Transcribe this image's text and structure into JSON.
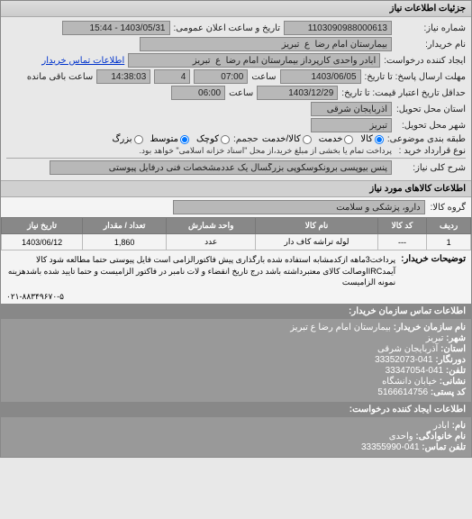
{
  "panel": {
    "title": "جزئیات اطلاعات نیاز"
  },
  "form": {
    "req_no_lbl": "شماره نیاز:",
    "req_no": "1103090988000613",
    "pub_date_lbl": "تاریخ و ساعت اعلان عمومی:",
    "pub_date": "1403/05/31 - 15:44",
    "buyer_lbl": "نام خریدار:",
    "buyer": "بیمارستان امام رضا  ع  تبریز",
    "creator_lbl": "ایجاد کننده درخواست:",
    "creator": "ابادر واحدی کارپرداز بیمارستان امام رضا  ع  تبریز",
    "contact_link": "اطلاعات تماس خریدار",
    "deadline_lbl": "مهلت ارسال پاسخ: تا تاریخ:",
    "deadline_date": "1403/06/05",
    "deadline_time_lbl": "ساعت",
    "deadline_time": "07:00",
    "remain_lbl": "ساعت باقی مانده",
    "remain_cnt": "4",
    "remain_time": "14:38:03",
    "valid_lbl": "حداقل تاریخ اعتبار قیمت: تا تاریخ:",
    "valid_date": "1403/12/29",
    "valid_time_lbl": "ساعت",
    "valid_time": "06:00",
    "prov_exec_lbl": "استان محل تحویل:",
    "prov_exec": "آذربایجان شرقی",
    "city_exec_lbl": "شهر محل تحویل:",
    "city_exec": "تبریز",
    "group_lbl": "طبقه بندی موضوعی:",
    "group_opts": {
      "goods": "کالا",
      "service": "خدمت",
      "both": "کالا/خدمت"
    },
    "size_lbl": "حجمم:",
    "size_opts": {
      "small": "کوچک",
      "med": "متوسط",
      "large": "بزرگ"
    },
    "contract_lbl": "نوع قرارداد خرید :",
    "contract_note": "پرداخت تمام یا بخشی از مبلغ خرید،از محل \"اسناد خزانه اسلامی\" خواهد بود.",
    "title_lbl": "شرح کلی نیاز:",
    "title": "پنس بیوپسی برونکوسکوپی بزرگسال یک عددمشخصات فنی درفایل پیوستی"
  },
  "goods": {
    "header": "اطلاعات کالاهای مورد نیاز",
    "group_lbl": "گروه کالا:",
    "group": "دارو، پزشکی و سلامت",
    "table": {
      "cols": [
        "ردیف",
        "کد کالا",
        "نام کالا",
        "واحد شمارش",
        "تعداد / مقدار",
        "تاریخ نیاز"
      ],
      "rows": [
        [
          "1",
          "---",
          "لوله تراشه کاف دار",
          "عدد",
          "1,860",
          "1403/06/12"
        ]
      ]
    }
  },
  "desc": {
    "lbl": "توضیحات خریدار:",
    "text": "پرداخت3ماهه ازکدمشابه استفاده شده بارگذاری پیش فاکتورالزامی است فایل پیوستی حتما مطالعه شود کالا آیمدIRCاوصالت کالای معتبرداشته باشد درج تاریخ انقضاء و لات نامبر در فاکتور الزامیست و حتما تایید شده باشدهزینه نمونه الزامیست",
    "bottom": "۰۲۱-۸۸۳۴۹۶۷۰-۵"
  },
  "contact": {
    "header": "اطلاعات تماس سازمان خریدار:",
    "org_lbl": "نام سازمان خریدار:",
    "org": "بیمارستان امام رضا ع تبریز",
    "city_lbl": "شهر:",
    "city": "تبریز",
    "prov_lbl": "استان:",
    "prov": "آذربایجان شرقی",
    "fax_lbl": "دورنگار:",
    "fax": "041-33352073",
    "tel_lbl": "تلفن:",
    "tel": "041-33347054",
    "addr_lbl": "نشانی:",
    "addr": "خیابان دانشگاه",
    "post_lbl": "کد پستی:",
    "post": "5166614756",
    "creator_header": "اطلاعات ایجاد کننده درخواست:",
    "name_lbl": "نام:",
    "name": "ابادر",
    "lname_lbl": "نام خانوادگی:",
    "lname": "واحدی",
    "ctel_lbl": "تلفن تماس:",
    "ctel": "041-33355990"
  }
}
